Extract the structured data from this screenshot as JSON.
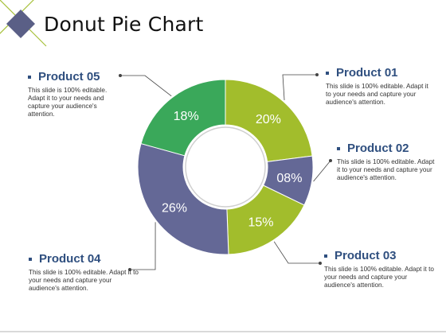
{
  "title": "Donut Pie Chart",
  "colors": {
    "green": "#3aa85a",
    "olive": "#a2bd2c",
    "slate": "#646896",
    "accent_diamond": "#5a5f86",
    "line_olive": "#a6c13a",
    "label_text": "#2f4f7f"
  },
  "callouts": [
    {
      "id": "product-05",
      "label": "Product 05",
      "desc": "This slide is 100% editable. Adapt it to your needs and capture your audience's attention."
    },
    {
      "id": "product-01",
      "label": "Product 01",
      "desc": "This slide is 100% editable. Adapt it to your needs and capture your audience's attention."
    },
    {
      "id": "product-02",
      "label": "Product 02",
      "desc": "This slide is 100% editable. Adapt it to your needs and capture your audience's attention."
    },
    {
      "id": "product-03",
      "label": "Product 03",
      "desc": "This slide is 100% editable. Adapt it to your needs and capture your audience's attention."
    },
    {
      "id": "product-04",
      "label": "Product 04",
      "desc": "This slide is 100% editable. Adapt it to your needs and capture your audience's attention."
    }
  ],
  "chart_data": {
    "type": "pie",
    "variant": "donut",
    "categories": [
      "Product 01",
      "Product 02",
      "Product 03",
      "Product 04",
      "Product 05"
    ],
    "values": [
      20,
      8,
      15,
      26,
      18
    ],
    "value_labels": [
      "20%",
      "08%",
      "15%",
      "26%",
      "18%"
    ],
    "colors": [
      "#a2bd2c",
      "#646896",
      "#a2bd2c",
      "#646896",
      "#3aa85a"
    ],
    "legend": "callouts"
  }
}
